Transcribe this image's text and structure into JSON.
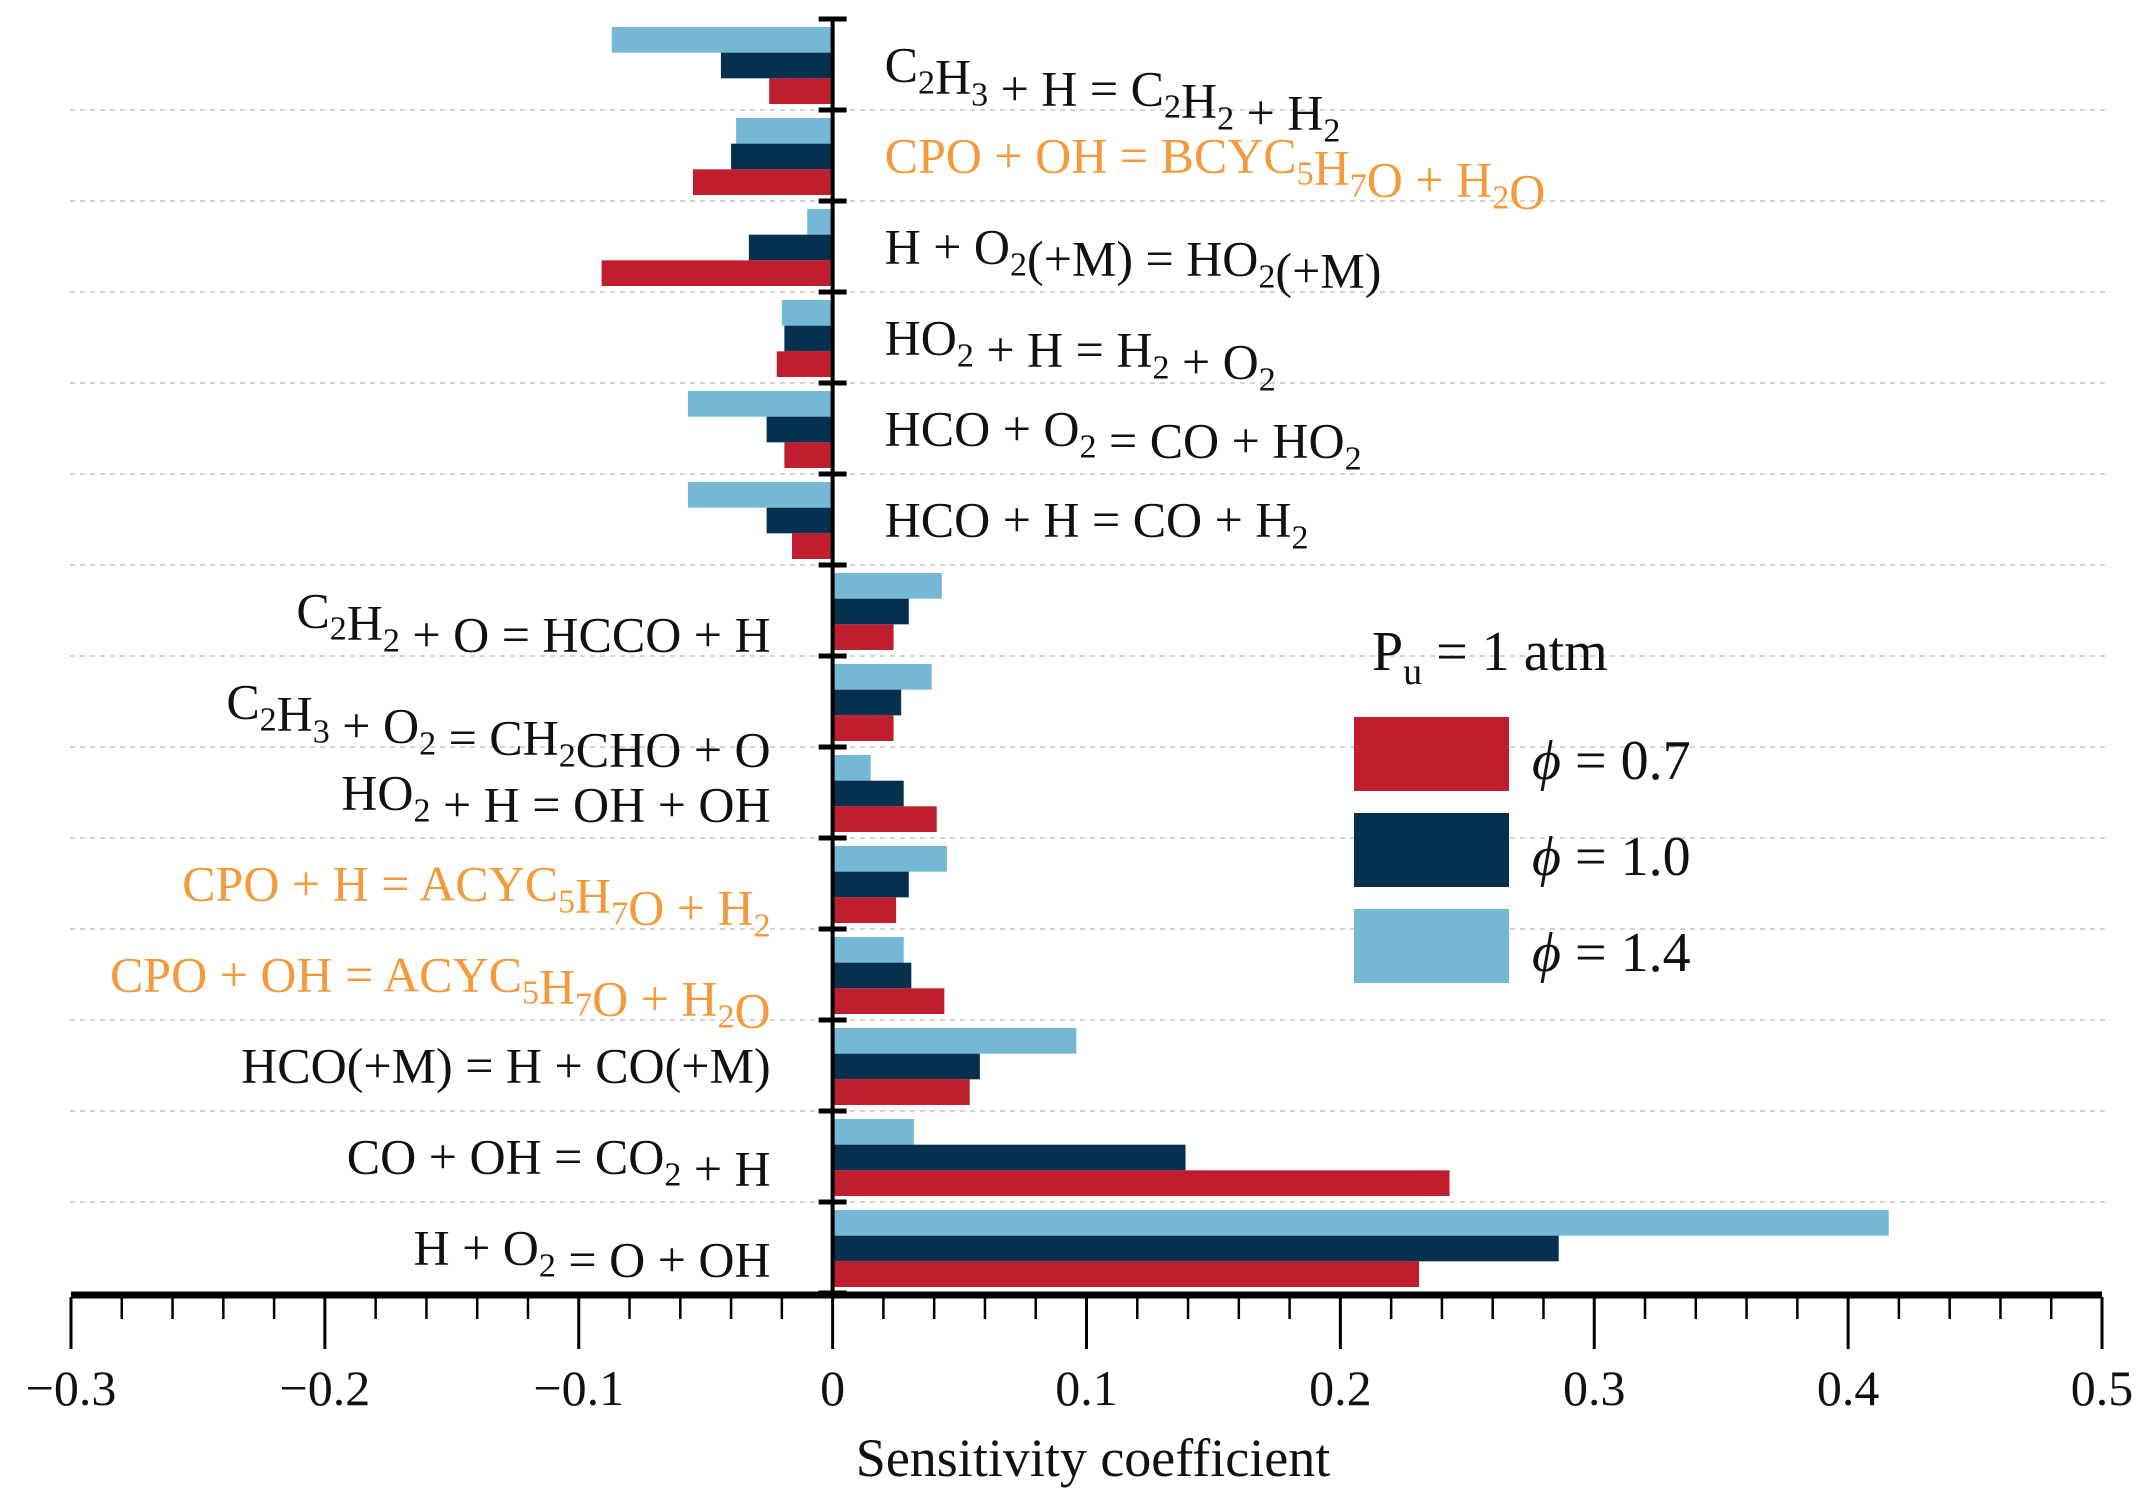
{
  "chart_data": {
    "type": "bar",
    "orientation": "horizontal",
    "title": "",
    "xlabel": "Sensitivity coefficient",
    "ylabel": "",
    "xlim": [
      -0.3,
      0.5
    ],
    "xticks": [
      -0.3,
      -0.2,
      -0.1,
      0,
      0.1,
      0.2,
      0.3,
      0.4,
      0.5
    ],
    "xtick_labels": [
      "−0.3",
      "−0.2",
      "−0.1",
      "0",
      "0.1",
      "0.2",
      "0.3",
      "0.4",
      "0.5"
    ],
    "grid": "horizontal dotted lines between reactions",
    "legend": {
      "title": "P",
      "title_sub": "u",
      "title_rest": " = 1 atm",
      "placement": "right-middle",
      "entries": [
        {
          "symbol": "ϕ",
          "text": " = 0.7"
        },
        {
          "symbol": "ϕ",
          "text": " = 1.0"
        },
        {
          "symbol": "ϕ",
          "text": " = 1.4"
        }
      ]
    },
    "categories": [
      {
        "parts": [
          [
            "C",
            ""
          ],
          [
            "2",
            "sub"
          ],
          [
            "H",
            ""
          ],
          [
            "3",
            "sub"
          ],
          [
            " + H = C",
            ""
          ],
          [
            "2",
            "sub"
          ],
          [
            "H",
            ""
          ],
          [
            "2",
            "sub"
          ],
          [
            " + H",
            ""
          ],
          [
            "2",
            "sub"
          ]
        ],
        "plain": "C2H3 + H = C2H2 + H2",
        "highlight": false
      },
      {
        "parts": [
          [
            "CPO + OH = BCYC",
            ""
          ],
          [
            "5",
            "sub"
          ],
          [
            "H",
            ""
          ],
          [
            "7",
            "sub"
          ],
          [
            "O + H",
            ""
          ],
          [
            "2",
            "sub"
          ],
          [
            "O",
            ""
          ]
        ],
        "plain": "CPO + OH = BCYC5H7O + H2O",
        "highlight": true
      },
      {
        "parts": [
          [
            "H + O",
            ""
          ],
          [
            "2",
            "sub"
          ],
          [
            "(+M) = HO",
            ""
          ],
          [
            "2",
            "sub"
          ],
          [
            "(+M)",
            ""
          ]
        ],
        "plain": "H + O2(+M) = HO2(+M)",
        "highlight": false
      },
      {
        "parts": [
          [
            "HO",
            ""
          ],
          [
            "2",
            "sub"
          ],
          [
            " + H = H",
            ""
          ],
          [
            "2",
            "sub"
          ],
          [
            " + O",
            ""
          ],
          [
            "2",
            "sub"
          ]
        ],
        "plain": "HO2 + H = H2 + O2",
        "highlight": false
      },
      {
        "parts": [
          [
            "HCO + O",
            ""
          ],
          [
            "2",
            "sub"
          ],
          [
            " = CO + HO",
            ""
          ],
          [
            "2",
            "sub"
          ]
        ],
        "plain": "HCO + O2 = CO + HO2",
        "highlight": false
      },
      {
        "parts": [
          [
            "HCO + H = CO + H",
            ""
          ],
          [
            "2",
            "sub"
          ]
        ],
        "plain": "HCO + H = CO + H2",
        "highlight": false
      },
      {
        "parts": [
          [
            "C",
            ""
          ],
          [
            "2",
            "sub"
          ],
          [
            "H",
            ""
          ],
          [
            "2",
            "sub"
          ],
          [
            " + O = HCCO + H",
            ""
          ]
        ],
        "plain": "C2H2 + O = HCCO + H",
        "highlight": false
      },
      {
        "parts": [
          [
            "C",
            ""
          ],
          [
            "2",
            "sub"
          ],
          [
            "H",
            ""
          ],
          [
            "3",
            "sub"
          ],
          [
            " + O",
            ""
          ],
          [
            "2",
            "sub"
          ],
          [
            " = CH",
            ""
          ],
          [
            "2",
            "sub"
          ],
          [
            "CHO + O",
            ""
          ]
        ],
        "plain": "C2H3 + O2 = CH2CHO + O",
        "highlight": false
      },
      {
        "parts": [
          [
            "HO",
            ""
          ],
          [
            "2",
            "sub"
          ],
          [
            " + H = OH + OH",
            ""
          ]
        ],
        "plain": "HO2 + H = OH + OH",
        "highlight": false
      },
      {
        "parts": [
          [
            "CPO + H = ACYC",
            ""
          ],
          [
            "5",
            "sub"
          ],
          [
            "H",
            ""
          ],
          [
            "7",
            "sub"
          ],
          [
            "O + H",
            ""
          ],
          [
            "2",
            "sub"
          ]
        ],
        "plain": "CPO + H = ACYC5H7O + H2",
        "highlight": true
      },
      {
        "parts": [
          [
            "CPO + OH = ACYC",
            ""
          ],
          [
            "5",
            "sub"
          ],
          [
            "H",
            ""
          ],
          [
            "7",
            "sub"
          ],
          [
            "O + H",
            ""
          ],
          [
            "2",
            "sub"
          ],
          [
            "O",
            ""
          ]
        ],
        "plain": "CPO + OH = ACYC5H7O + H2O",
        "highlight": true
      },
      {
        "parts": [
          [
            "HCO(+M) = H + CO(+M)",
            ""
          ]
        ],
        "plain": "HCO(+M) = H + CO(+M)",
        "highlight": false
      },
      {
        "parts": [
          [
            "CO + OH = CO",
            ""
          ],
          [
            "2",
            "sub"
          ],
          [
            " + H",
            ""
          ]
        ],
        "plain": "CO + OH = CO2 + H",
        "highlight": false
      },
      {
        "parts": [
          [
            "H + O",
            ""
          ],
          [
            "2",
            "sub"
          ],
          [
            " = O + OH",
            ""
          ]
        ],
        "plain": "H + O2 = O + OH",
        "highlight": false
      }
    ],
    "series": [
      {
        "name": "ϕ = 1.4",
        "color": "#74B8D6",
        "values": [
          -0.087,
          -0.038,
          -0.01,
          -0.02,
          -0.057,
          -0.057,
          0.043,
          0.039,
          0.015,
          0.045,
          0.028,
          0.096,
          0.032,
          0.416
        ]
      },
      {
        "name": "ϕ = 1.0",
        "color": "#05304E",
        "values": [
          -0.044,
          -0.04,
          -0.033,
          -0.019,
          -0.026,
          -0.026,
          0.03,
          0.027,
          0.028,
          0.03,
          0.031,
          0.058,
          0.139,
          0.286
        ]
      },
      {
        "name": "ϕ = 0.7",
        "color": "#BE1E2D",
        "values": [
          -0.025,
          -0.055,
          -0.091,
          -0.022,
          -0.019,
          -0.016,
          0.024,
          0.024,
          0.041,
          0.025,
          0.044,
          0.054,
          0.243,
          0.231
        ]
      }
    ],
    "legend_order": [
      "ϕ = 0.7",
      "ϕ = 1.0",
      "ϕ = 1.4"
    ],
    "highlight_color": "#F59A3A",
    "gridline_after_rows": [
      1,
      2,
      3,
      4,
      5,
      6,
      7,
      8,
      9,
      10,
      11,
      12,
      13
    ]
  }
}
